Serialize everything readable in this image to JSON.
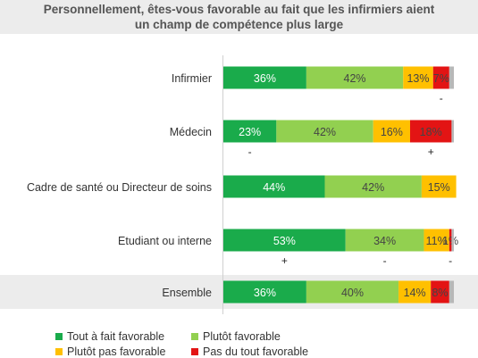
{
  "chart_data": {
    "type": "bar",
    "orientation": "horizontal",
    "stacked": true,
    "percent": true,
    "title": "Personnellement, êtes-vous favorable au fait que les infirmiers aient un champ de compétence plus large",
    "title_lines": [
      "Personnellement, êtes-vous favorable au fait que les infirmiers aient",
      "un champ de compétence plus large"
    ],
    "categories": [
      "Infirmier",
      "Médecin",
      "Cadre de santé ou Directeur de soins",
      "Etudiant ou interne",
      "Ensemble"
    ],
    "series": [
      {
        "name": "Tout à fait favorable",
        "color": "#1aab4b",
        "values": [
          36,
          23,
          44,
          53,
          36
        ],
        "labels": [
          "36%",
          "23%",
          "44%",
          "53%",
          "36%"
        ]
      },
      {
        "name": "Plutôt favorable",
        "color": "#92d050",
        "values": [
          42,
          42,
          42,
          34,
          40
        ],
        "labels": [
          "42%",
          "42%",
          "42%",
          "34%",
          "40%"
        ]
      },
      {
        "name": "Plutôt pas favorable",
        "color": "#ffc000",
        "values": [
          13,
          16,
          15,
          11,
          14
        ],
        "labels": [
          "13%",
          "16%",
          "15%",
          "11%",
          "14%"
        ]
      },
      {
        "name": "Pas du tout favorable",
        "color": "#e31414",
        "values": [
          7,
          18,
          0,
          1,
          8
        ],
        "labels": [
          "7%",
          "18%",
          "",
          "1%",
          "8%"
        ]
      },
      {
        "name": "",
        "color": "#b8b8b8",
        "values": [
          2,
          1,
          0,
          1,
          2
        ],
        "labels": [
          "",
          "",
          "",
          "",
          ""
        ]
      }
    ],
    "markers": [
      [
        {
          "series": 3,
          "sign": "-"
        }
      ],
      [
        {
          "series": 0,
          "sign": "-"
        },
        {
          "series": 3,
          "sign": "+"
        }
      ],
      [],
      [
        {
          "series": 0,
          "sign": "+"
        },
        {
          "series": 1,
          "sign": "-"
        },
        {
          "series": 3,
          "sign": "-"
        }
      ],
      []
    ],
    "highlighted_category": "Ensemble",
    "xlim": [
      0,
      100
    ],
    "legend_position": "bottom-left"
  },
  "legend": [
    {
      "label": "Tout à fait favorable",
      "color": "#1aab4b"
    },
    {
      "label": "Plutôt favorable",
      "color": "#92d050"
    },
    {
      "label": "Plutôt pas favorable",
      "color": "#ffc000"
    },
    {
      "label": "Pas du tout favorable",
      "color": "#e31414"
    }
  ]
}
